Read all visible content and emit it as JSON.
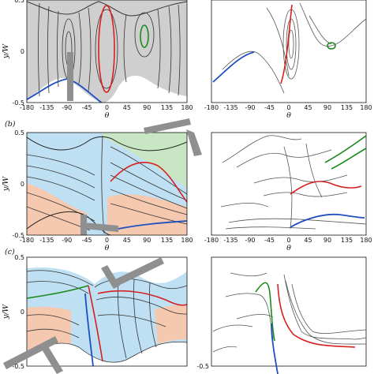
{
  "chart_data": [
    {
      "id": "a-left",
      "type": "phase_portrait",
      "panel_label": "",
      "xlabel": "θ",
      "ylabel": "y/W",
      "xlim": [
        -180,
        180
      ],
      "ylim": [
        -0.5,
        0.5
      ],
      "xticks": [
        "-180",
        "-135",
        "-90",
        "-45",
        "0",
        "45",
        "90",
        "135",
        "180"
      ],
      "yticks": [
        "0.5",
        "0",
        "-0.5"
      ],
      "shading": "gray",
      "colored_orbits": [
        {
          "color": "#d62020",
          "center": [
            0,
            0.02
          ],
          "half_width_deg": 20,
          "half_height": 0.42
        },
        {
          "color": "#1a8a1a",
          "center": [
            90,
            0.12
          ],
          "half_width_deg": 8,
          "half_height": 0.12
        }
      ],
      "separatrix": {
        "color": "#1f4fc0",
        "x": [
          -180,
          -150,
          -120,
          -90,
          -60,
          -30,
          0
        ],
        "y": [
          -0.46,
          -0.4,
          -0.32,
          -0.3,
          -0.37,
          -0.46,
          -0.5
        ]
      }
    },
    {
      "id": "a-right",
      "type": "trajectories",
      "xlim": [
        -180,
        180
      ],
      "ylim": [
        -0.5,
        0.5
      ],
      "xticks": [
        "-180",
        "-135",
        "-90",
        "-45",
        "0",
        "45",
        "90",
        "135",
        "180"
      ],
      "xlabel": "θ"
    },
    {
      "id": "b-left",
      "type": "phase_portrait",
      "panel_label": "(b)",
      "xlabel": "θ",
      "ylabel": "y/W",
      "xlim": [
        -180,
        180
      ],
      "ylim": [
        -0.5,
        0.5
      ],
      "xticks": [
        "-180",
        "-135",
        "-90",
        "-45",
        "0",
        "45",
        "90",
        "135",
        "180"
      ],
      "yticks": [
        "0.5",
        "0",
        "-0.5"
      ],
      "regions": [
        "#bfe0f2",
        "#c8e6c4",
        "#f5c9b0"
      ]
    },
    {
      "id": "b-right",
      "type": "trajectories",
      "xlim": [
        -180,
        180
      ],
      "ylim": [
        -0.5,
        0.5
      ],
      "xticks": [
        "-180",
        "-135",
        "-90",
        "-45",
        "0",
        "45",
        "90",
        "135",
        "180"
      ],
      "xlabel": "θ"
    },
    {
      "id": "c-left",
      "type": "phase_portrait",
      "panel_label": "(c)",
      "ylabel": "y/W",
      "xlim": [
        -180,
        180
      ],
      "ylim": [
        -0.5,
        0.5
      ],
      "yticks": [
        "0.5",
        "0",
        "-0.5"
      ],
      "regions": [
        "#bfe0f2",
        "#f5c9b0"
      ]
    },
    {
      "id": "c-right",
      "type": "trajectories",
      "xlim": [
        -180,
        180
      ],
      "ylim": [
        -0.5,
        0.5
      ],
      "yticks": [
        "-0.5"
      ]
    }
  ],
  "labels": {
    "b": "(b)",
    "c": "(c)",
    "theta": "θ",
    "yw": "y/W"
  }
}
